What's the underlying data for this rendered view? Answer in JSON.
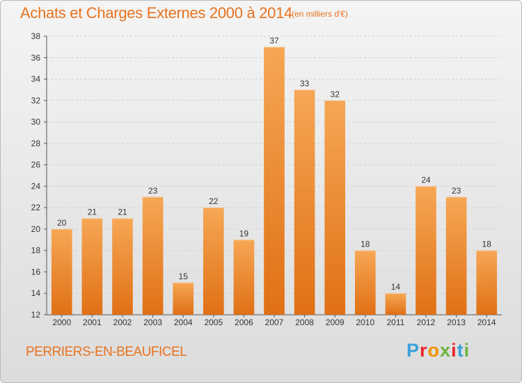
{
  "title": "Achats et Charges Externes 2000 à 2014",
  "subtitle": "(en milliers d'€)",
  "place": "PERRIERS-EN-BEAUFICEL",
  "logo": {
    "letters": [
      "P",
      "r",
      "o",
      "x",
      "i",
      "t",
      "i"
    ],
    "colors": [
      "#3aa0dc",
      "#e7252c",
      "#f39200",
      "#6cb33f",
      "#e7252c",
      "#3aa0dc",
      "#6cb33f"
    ]
  },
  "colors": {
    "bar": "#f28d2a",
    "bar_top": "#f6a755",
    "bar_bottom": "#e07015",
    "accent": "#e8731f"
  },
  "chart_data": {
    "type": "bar",
    "title": "Achats et Charges Externes 2000 à 2014",
    "subtitle": "(en milliers d'€)",
    "categories": [
      "2000",
      "2001",
      "2002",
      "2003",
      "2004",
      "2005",
      "2006",
      "2007",
      "2008",
      "2009",
      "2010",
      "2011",
      "2012",
      "2013",
      "2014"
    ],
    "values": [
      20,
      21,
      21,
      23,
      15,
      22,
      19,
      37,
      33,
      32,
      18,
      14,
      24,
      23,
      18
    ],
    "ylim": [
      12,
      38
    ],
    "yticks": [
      12,
      14,
      16,
      18,
      20,
      22,
      24,
      26,
      28,
      30,
      32,
      34,
      36,
      38
    ],
    "grid": true,
    "xlabel": "",
    "ylabel": ""
  }
}
